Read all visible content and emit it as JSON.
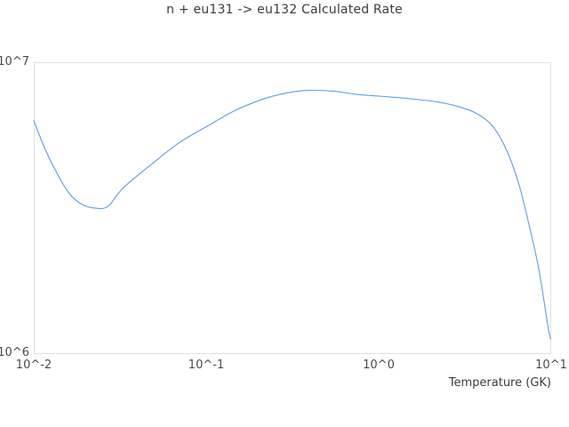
{
  "chart_data": {
    "type": "line",
    "title": "n + eu131 -> eu132 Calculated Rate",
    "xlabel": "Temperature (GK)",
    "ylabel": "",
    "x_scale": "log",
    "y_scale": "log",
    "xlim": [
      0.01,
      10
    ],
    "ylim": [
      1000000,
      10000000
    ],
    "grid": false,
    "legend": "none",
    "line_color": "#5d9de4",
    "border_color": "#e0e0e0",
    "title_color": "#3c3c3c",
    "tick_color": "#4a4a4a",
    "xticks": [
      {
        "label": "10^-2",
        "value": 0.01
      },
      {
        "label": "10^-1",
        "value": 0.1
      },
      {
        "label": "10^0",
        "value": 1
      },
      {
        "label": "10^1",
        "value": 10
      }
    ],
    "yticks": [
      {
        "label": "10^6",
        "value": 1000000
      },
      {
        "label": "10^7",
        "value": 10000000
      }
    ],
    "series": [
      {
        "name": "calculated-rate",
        "x": [
          0.01,
          0.0115,
          0.0135,
          0.016,
          0.019,
          0.023,
          0.027,
          0.033,
          0.049,
          0.07,
          0.1,
          0.145,
          0.21,
          0.28,
          0.38,
          0.55,
          0.75,
          1.0,
          1.5,
          2.2,
          3.0,
          3.8,
          4.6,
          5.5,
          6.5,
          7.5,
          8.4,
          9.1,
          9.6,
          9.9
        ],
        "y": [
          6300000,
          5100000,
          4200000,
          3550000,
          3250000,
          3150000,
          3200000,
          3700000,
          4500000,
          5300000,
          6000000,
          6800000,
          7450000,
          7800000,
          8000000,
          7950000,
          7750000,
          7650000,
          7500000,
          7300000,
          7000000,
          6600000,
          6000000,
          5000000,
          3800000,
          2700000,
          2000000,
          1500000,
          1220000,
          1120000
        ]
      }
    ]
  }
}
